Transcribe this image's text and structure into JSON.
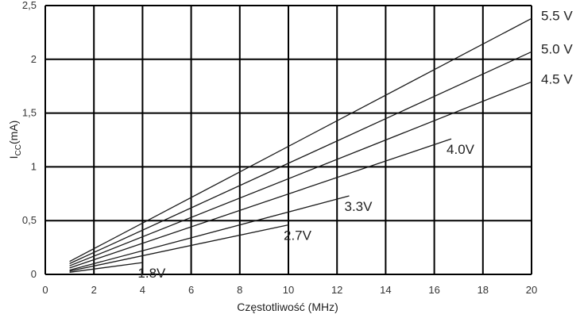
{
  "chart_data": {
    "type": "line",
    "title": "",
    "xlabel": "Częstotliwość (MHz)",
    "ylabel_main": "I",
    "ylabel_sub": "CC",
    "ylabel_rest": "(mA)",
    "xlim": [
      0,
      20
    ],
    "ylim": [
      0,
      2.5
    ],
    "xticks": [
      0,
      2,
      4,
      6,
      8,
      10,
      12,
      14,
      16,
      18,
      20
    ],
    "xtick_labels": [
      "0",
      "2",
      "4",
      "6",
      "8",
      "10",
      "12",
      "14",
      "16",
      "18",
      "20"
    ],
    "yticks": [
      0,
      0.5,
      1,
      1.5,
      2,
      2.5
    ],
    "ytick_labels": [
      "0",
      "0,5",
      "1",
      "1,5",
      "2",
      "2,5"
    ],
    "grid": true,
    "series": [
      {
        "name": "5.5 V",
        "x": [
          1,
          20
        ],
        "y": [
          0.12,
          2.38
        ]
      },
      {
        "name": "5.0 V",
        "x": [
          1,
          20
        ],
        "y": [
          0.1,
          2.07
        ]
      },
      {
        "name": "4.5 V",
        "x": [
          1,
          20
        ],
        "y": [
          0.08,
          1.79
        ]
      },
      {
        "name": "4.0V",
        "x": [
          1,
          16.7
        ],
        "y": [
          0.06,
          1.26
        ]
      },
      {
        "name": "3.3V",
        "x": [
          1,
          12.5
        ],
        "y": [
          0.04,
          0.73
        ]
      },
      {
        "name": "2.7V",
        "x": [
          1,
          10
        ],
        "y": [
          0.03,
          0.46
        ]
      },
      {
        "name": "1.8V",
        "x": [
          1,
          4
        ],
        "y": [
          0.02,
          0.11
        ]
      }
    ]
  }
}
